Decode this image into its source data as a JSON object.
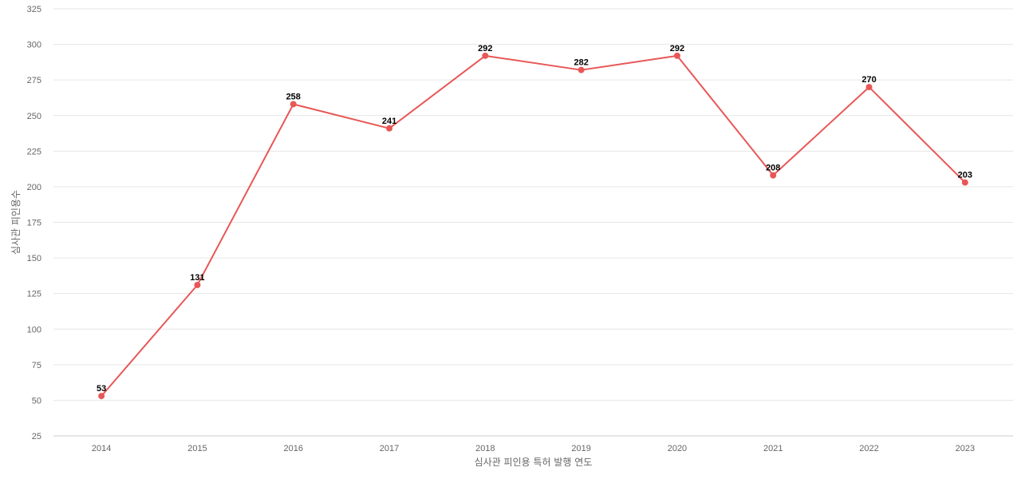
{
  "chart_data": {
    "type": "line",
    "title": "",
    "xlabel": "심사관 피인용 특허 발행 연도",
    "ylabel": "심사관 피인용수",
    "categories": [
      "2014",
      "2015",
      "2016",
      "2017",
      "2018",
      "2019",
      "2020",
      "2021",
      "2022",
      "2023"
    ],
    "series": [
      {
        "values": [
          53,
          131,
          258,
          241,
          292,
          282,
          292,
          208,
          270,
          203
        ],
        "color": "#e85757"
      }
    ],
    "ylim": [
      25,
      325
    ],
    "yticks": [
      25,
      50,
      75,
      100,
      125,
      150,
      175,
      200,
      225,
      250,
      275,
      300,
      325
    ],
    "grid": true,
    "legend": "none",
    "data_labels": true
  }
}
